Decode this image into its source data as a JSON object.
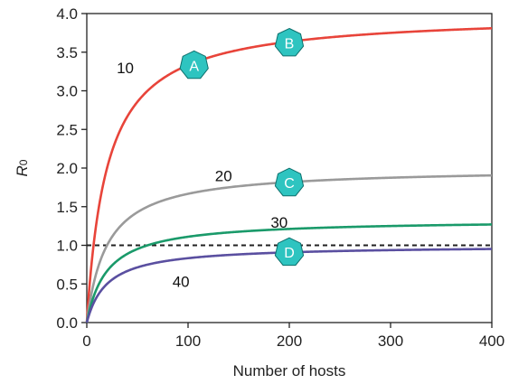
{
  "chart_data": {
    "type": "line",
    "xlabel": "Number of hosts",
    "ylabel_main": "R",
    "ylabel_sub": "0",
    "xlim": [
      0,
      400
    ],
    "ylim": [
      0,
      4
    ],
    "xticks": [
      0,
      100,
      200,
      300,
      400
    ],
    "yticks": [
      0.0,
      0.5,
      1.0,
      1.5,
      2.0,
      2.5,
      3.0,
      3.5,
      4.0
    ],
    "grid": false,
    "series": [
      {
        "name": "10",
        "color": "#e8443a",
        "asymptote": 4.0,
        "half_saturation": 20
      },
      {
        "name": "20",
        "color": "#9a9a9a",
        "asymptote": 2.0,
        "half_saturation": 20
      },
      {
        "name": "30",
        "color": "#1a9a6a",
        "asymptote": 1.333,
        "half_saturation": 20
      },
      {
        "name": "40",
        "color": "#5a4fa0",
        "asymptote": 1.0,
        "half_saturation": 20
      }
    ],
    "threshold": {
      "y": 1.0,
      "style": "dashed",
      "color": "#222222"
    },
    "curve_labels": [
      {
        "text": "10",
        "x": 38,
        "y": 3.3
      },
      {
        "text": "20",
        "x": 135,
        "y": 1.9
      },
      {
        "text": "30",
        "x": 190,
        "y": 1.3
      },
      {
        "text": "40",
        "x": 93,
        "y": 0.53
      }
    ],
    "markers": [
      {
        "label": "A",
        "x": 106,
        "y": 3.33,
        "color": "#2ec4c0"
      },
      {
        "label": "B",
        "x": 200,
        "y": 3.62,
        "color": "#2ec4c0"
      },
      {
        "label": "C",
        "x": 200,
        "y": 1.81,
        "color": "#2ec4c0"
      },
      {
        "label": "D",
        "x": 200,
        "y": 0.91,
        "color": "#2ec4c0"
      }
    ]
  }
}
